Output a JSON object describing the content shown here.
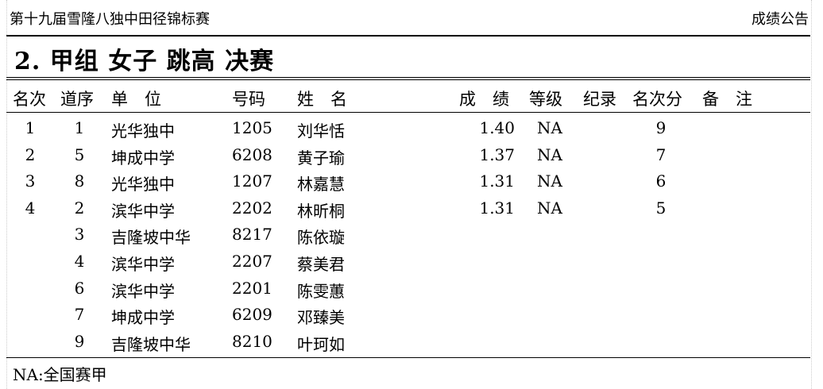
{
  "header": {
    "meet_title": "第十九届雪隆八独中田径锦标赛",
    "doc_type": "成绩公告"
  },
  "event_title": "2. 甲组 女子 跳高 决赛",
  "columns": [
    "名次",
    "道序",
    "单　位",
    "号码",
    "姓　名",
    "成　绩",
    "等级",
    "纪录",
    "名次分",
    "备　注"
  ],
  "rows": [
    {
      "rank": "1",
      "lane": "1",
      "unit": "光华独中",
      "bib": "1205",
      "name": "刘华恬",
      "result": "1.40",
      "grade": "NA",
      "record": "",
      "points": "9",
      "remark": ""
    },
    {
      "rank": "2",
      "lane": "5",
      "unit": "坤成中学",
      "bib": "6208",
      "name": "黄子瑜",
      "result": "1.37",
      "grade": "NA",
      "record": "",
      "points": "7",
      "remark": ""
    },
    {
      "rank": "3",
      "lane": "8",
      "unit": "光华独中",
      "bib": "1207",
      "name": "林嘉慧",
      "result": "1.31",
      "grade": "NA",
      "record": "",
      "points": "6",
      "remark": ""
    },
    {
      "rank": "4",
      "lane": "2",
      "unit": "滨华中学",
      "bib": "2202",
      "name": "林昕桐",
      "result": "1.31",
      "grade": "NA",
      "record": "",
      "points": "5",
      "remark": ""
    },
    {
      "rank": "",
      "lane": "3",
      "unit": "吉隆坡中华",
      "bib": "8217",
      "name": "陈依璇",
      "result": "",
      "grade": "",
      "record": "",
      "points": "",
      "remark": ""
    },
    {
      "rank": "",
      "lane": "4",
      "unit": "滨华中学",
      "bib": "2207",
      "name": "蔡美君",
      "result": "",
      "grade": "",
      "record": "",
      "points": "",
      "remark": ""
    },
    {
      "rank": "",
      "lane": "6",
      "unit": "滨华中学",
      "bib": "2201",
      "name": "陈雯蕙",
      "result": "",
      "grade": "",
      "record": "",
      "points": "",
      "remark": ""
    },
    {
      "rank": "",
      "lane": "7",
      "unit": "坤成中学",
      "bib": "6209",
      "name": "邓臻美",
      "result": "",
      "grade": "",
      "record": "",
      "points": "",
      "remark": ""
    },
    {
      "rank": "",
      "lane": "9",
      "unit": "吉隆坡中华",
      "bib": "8210",
      "name": "叶珂如",
      "result": "",
      "grade": "",
      "record": "",
      "points": "",
      "remark": ""
    }
  ],
  "footnote": "NA:全国赛甲"
}
